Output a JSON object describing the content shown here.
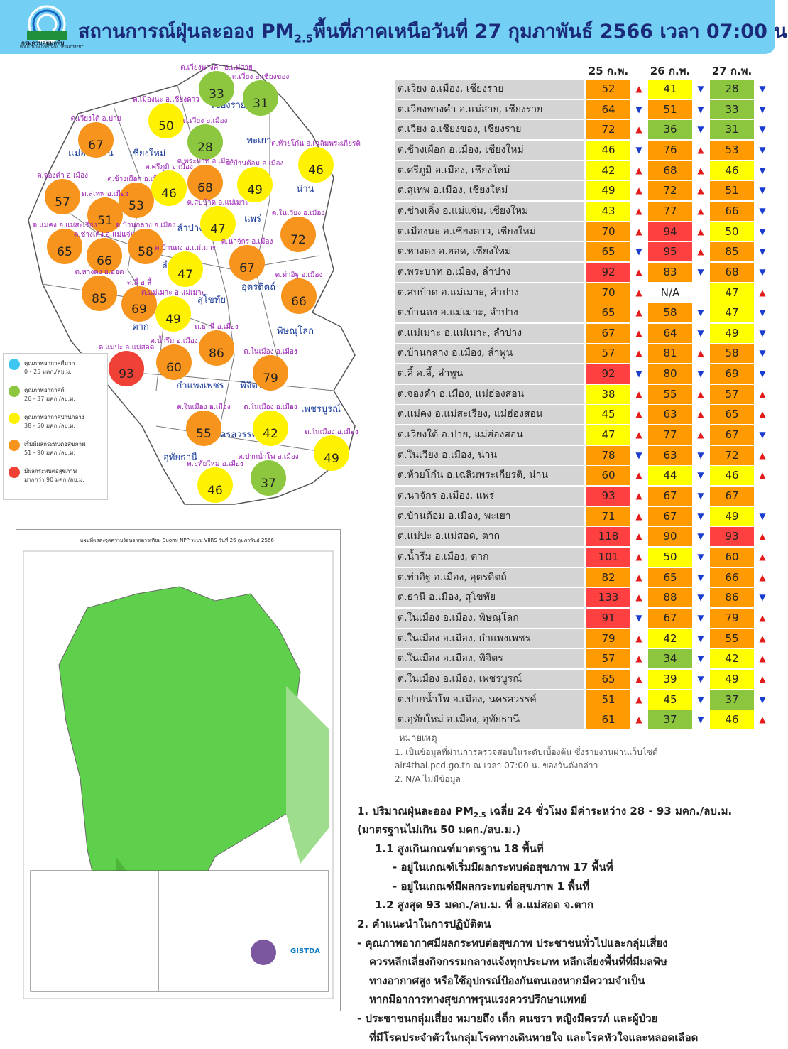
{
  "header": {
    "title_parts": [
      "สถานการณ์ฝุ่นละออง PM",
      "2.5",
      "พื้นที่ภาคเหนือวันที่ 27 กุมภาพันธ์ 2566 เวลา 07:00 น."
    ],
    "logo_name": "กรมควบคุมมลพิษ",
    "logo_en": "POLLUTION CONTROL DEPARTMENT"
  },
  "map": {
    "provinces": [
      "เชียงราย",
      "แม่ฮ่องสอน",
      "เชียงใหม่",
      "พะเยา",
      "น่าน",
      "ลำปาง",
      "แพร่",
      "ลำพูน",
      "สุโขทัย",
      "อุตรดิตถ์",
      "ตาก",
      "พิษณุโลก",
      "กำแพงเพชร",
      "พิจิตร",
      "เพชรบูรณ์",
      "นครสวรรค์",
      "อุทัยธานี"
    ],
    "stations": [
      {
        "label": "ต.เวียงพางคำ อ.แม่สาย",
        "value": 33
      },
      {
        "label": "ต.เวียง อ.เชียงของ",
        "value": 31
      },
      {
        "label": "ต.เมืองนะ อ.เชียงดาว",
        "value": 50
      },
      {
        "label": "ต.เวียง อ.เมือง",
        "value": 28
      },
      {
        "label": "ต.เวียงใต้ อ.ปาย",
        "value": 67
      },
      {
        "label": "ต.ห้วยโก๋น อ.เฉลิมพระเกียรติ",
        "value": 46
      },
      {
        "label": "ต.จองคำ อ.เมือง",
        "value": 57
      },
      {
        "label": "ต.ช้างเผือก อ.เมือง",
        "value": 53
      },
      {
        "label": "ต.ศรีภูมิ อ.เมือง",
        "value": 46
      },
      {
        "label": "ต.พระบาท อ.เมือง",
        "value": 68
      },
      {
        "label": "ต.บ้านต้อม อ.เมือง",
        "value": 49
      },
      {
        "label": "ต.สุเทพ อ.เมือง",
        "value": 51
      },
      {
        "label": "ต.สบป้าด อ.แม่เมาะ",
        "value": 47
      },
      {
        "label": "ต.ในเวียง อ.เมือง",
        "value": 72
      },
      {
        "label": "ต.แม่คง อ.แม่สะเรียง",
        "value": 65
      },
      {
        "label": "ต.ช่างเคิ่ง อ.แม่แจ่ม",
        "value": 66
      },
      {
        "label": "ต.บ้านกลาง อ.เมือง",
        "value": 58
      },
      {
        "label": "ต.บ้านดง อ.แม่เมาะ",
        "value": 47
      },
      {
        "label": "ต.นาจักร อ.เมือง",
        "value": 67
      },
      {
        "label": "ต.หางดง อ.ฮอด",
        "value": 85
      },
      {
        "label": "ต.ลี้ อ.ลี้",
        "value": 69
      },
      {
        "label": "ต.แม่เมาะ อ.แม่เมาะ",
        "value": 49
      },
      {
        "label": "ต.ท่าอิฐ อ.เมือง",
        "value": 66
      },
      {
        "label": "ต.ธานี อ.เมือง",
        "value": 86
      },
      {
        "label": "ต.แม่ปะ อ.แม่สอด",
        "value": 93
      },
      {
        "label": "ต.น้ำรึม อ.เมือง",
        "value": 60
      },
      {
        "label": "ต.ในเมือง อ.เมือง",
        "value": 79
      },
      {
        "label": "ต.ในเมือง อ.เมือง",
        "value": 55
      },
      {
        "label": "ต.ในเมือง อ.เมือง",
        "value": 42
      },
      {
        "label": "ต.ในเมือง อ.เมือง",
        "value": 49
      },
      {
        "label": "ต.ปากน้ำโพ อ.เมือง",
        "value": 37
      },
      {
        "label": "ต.อุทัยใหม่ อ.เมือง",
        "value": 46
      }
    ]
  },
  "legend": [
    {
      "name": "คุณภาพอากาศดีมาก",
      "range": "0 - 25 มคก./ลบ.ม.",
      "color": "#3ec6f0"
    },
    {
      "name": "คุณภาพอากาศดี",
      "range": "26 - 37 มคก./ลบ.ม.",
      "color": "#8dc63f"
    },
    {
      "name": "คุณภาพอากาศปานกลาง",
      "range": "38 - 50 มคก./ลบ.ม.",
      "color": "#fff200"
    },
    {
      "name": "เริ่มมีผลกระทบต่อสุขภาพ",
      "range": "51 - 90 มคก./ลบ.ม.",
      "color": "#f7941d"
    },
    {
      "name": "มีผลกระทบต่อสุขภาพ",
      "range": "มากกว่า 90 มคก./ลบ.ม.",
      "color": "#ef4136"
    }
  ],
  "satellite": {
    "title": "แผนที่แสดงจุดความร้อนจากดาวเทียม Suomi NPP ระบบ VIIRS วันที่ 26 กุมภาพันธ์ 2566",
    "credit": "GISTDA"
  },
  "table": {
    "columns": [
      "25 ก.พ.",
      "26 ก.พ.",
      "27 ก.พ."
    ],
    "rows": [
      {
        "name": "ต.เวียง อ.เมือง, เชียงราย",
        "values": [
          52,
          41,
          28
        ],
        "arrows": [
          "▲",
          "▼",
          "▼"
        ]
      },
      {
        "name": "ต.เวียงพางคำ อ.แม่สาย, เชียงราย",
        "values": [
          64,
          51,
          33
        ],
        "arrows": [
          "▼",
          "▼",
          "▼"
        ]
      },
      {
        "name": "ต.เวียง อ.เชียงของ, เชียงราย",
        "values": [
          72,
          36,
          31
        ],
        "arrows": [
          "▲",
          "▼",
          "▼"
        ]
      },
      {
        "name": "ต.ช้างเผือก อ.เมือง, เชียงใหม่",
        "values": [
          46,
          76,
          53
        ],
        "arrows": [
          "▼",
          "▲",
          "▼"
        ]
      },
      {
        "name": "ต.ศรีภูมิ อ.เมือง, เชียงใหม่",
        "values": [
          42,
          68,
          46
        ],
        "arrows": [
          "▲",
          "▲",
          "▼"
        ]
      },
      {
        "name": "ต.สุเทพ อ.เมือง, เชียงใหม่",
        "values": [
          49,
          72,
          51
        ],
        "arrows": [
          "▲",
          "▲",
          "▼"
        ]
      },
      {
        "name": "ต.ช่างเคิ่ง อ.แม่แจ่ม, เชียงใหม่",
        "values": [
          43,
          77,
          66
        ],
        "arrows": [
          "▲",
          "▲",
          "▼"
        ]
      },
      {
        "name": "ต.เมืองนะ อ.เชียงดาว, เชียงใหม่",
        "values": [
          70,
          94,
          50
        ],
        "arrows": [
          "▲",
          "▲",
          "▼"
        ]
      },
      {
        "name": "ต.หางดง อ.ฮอด, เชียงใหม่",
        "values": [
          65,
          95,
          85
        ],
        "arrows": [
          "▼",
          "▲",
          "▼"
        ]
      },
      {
        "name": "ต.พระบาท อ.เมือง, ลำปาง",
        "values": [
          92,
          83,
          68
        ],
        "arrows": [
          "▲",
          "▼",
          "▼"
        ]
      },
      {
        "name": "ต.สบป้าด อ.แม่เมาะ, ลำปาง",
        "values": [
          70,
          "N/A",
          47
        ],
        "arrows": [
          "▲",
          null,
          "▲"
        ]
      },
      {
        "name": "ต.บ้านดง อ.แม่เมาะ, ลำปาง",
        "values": [
          65,
          58,
          47
        ],
        "arrows": [
          "▲",
          "▼",
          "▼"
        ]
      },
      {
        "name": "ต.แม่เมาะ อ.แม่เมาะ, ลำปาง",
        "values": [
          67,
          64,
          49
        ],
        "arrows": [
          "▲",
          "▼",
          "▼"
        ]
      },
      {
        "name": "ต.บ้านกลาง อ.เมือง, ลำพูน",
        "values": [
          57,
          81,
          58
        ],
        "arrows": [
          "▲",
          "▲",
          "▼"
        ]
      },
      {
        "name": "ต.ลี้ อ.ลี้, ลำพูน",
        "values": [
          92,
          80,
          69
        ],
        "arrows": [
          "▼",
          "▼",
          "▼"
        ]
      },
      {
        "name": "ต.จองคำ อ.เมือง, แม่ฮ่องสอน",
        "values": [
          38,
          55,
          57
        ],
        "arrows": [
          "▲",
          "▲",
          "▲"
        ]
      },
      {
        "name": "ต.แม่คง อ.แม่สะเรียง, แม่ฮ่องสอน",
        "values": [
          45,
          63,
          65
        ],
        "arrows": [
          "▲",
          "▲",
          "▲"
        ]
      },
      {
        "name": "ต.เวียงใต้ อ.ปาย, แม่ฮ่องสอน",
        "values": [
          47,
          77,
          67
        ],
        "arrows": [
          "▲",
          "▲",
          "▼"
        ]
      },
      {
        "name": "ต.ในเวียง อ.เมือง, น่าน",
        "values": [
          78,
          63,
          72
        ],
        "arrows": [
          "▼",
          "▼",
          "▲"
        ]
      },
      {
        "name": "ต.ห้วยโก๋น อ.เฉลิมพระเกียรติ, น่าน",
        "values": [
          60,
          44,
          46
        ],
        "arrows": [
          "▲",
          "▼",
          "▲"
        ]
      },
      {
        "name": "ต.นาจักร อ.เมือง, แพร่",
        "values": [
          93,
          67,
          67
        ],
        "arrows": [
          "▲",
          "▼",
          null
        ]
      },
      {
        "name": "ต.บ้านต้อม อ.เมือง, พะเยา",
        "values": [
          71,
          67,
          49
        ],
        "arrows": [
          "▲",
          "▼",
          "▼"
        ]
      },
      {
        "name": "ต.แม่ปะ อ.แม่สอด, ตาก",
        "values": [
          118,
          90,
          93
        ],
        "arrows": [
          "▲",
          "▼",
          "▲"
        ]
      },
      {
        "name": "ต.น้ำรึม อ.เมือง, ตาก",
        "values": [
          101,
          50,
          60
        ],
        "arrows": [
          "▲",
          "▼",
          "▲"
        ]
      },
      {
        "name": "ต.ท่าอิฐ อ.เมือง, อุตรดิตถ์",
        "values": [
          82,
          65,
          66
        ],
        "arrows": [
          "▲",
          "▼",
          "▲"
        ]
      },
      {
        "name": "ต.ธานี อ.เมือง, สุโขทัย",
        "values": [
          133,
          88,
          86
        ],
        "arrows": [
          "▲",
          "▼",
          "▼"
        ]
      },
      {
        "name": "ต.ในเมือง อ.เมือง, พิษณุโลก",
        "values": [
          91,
          67,
          79
        ],
        "arrows": [
          "▼",
          "▼",
          "▲"
        ]
      },
      {
        "name": "ต.ในเมือง อ.เมือง, กำแพงเพชร",
        "values": [
          79,
          42,
          55
        ],
        "arrows": [
          "▲",
          "▼",
          "▲"
        ]
      },
      {
        "name": "ต.ในเมือง อ.เมือง, พิจิตร",
        "values": [
          57,
          34,
          42
        ],
        "arrows": [
          "▲",
          "▼",
          "▲"
        ]
      },
      {
        "name": "ต.ในเมือง อ.เมือง, เพชรบูรณ์",
        "values": [
          65,
          39,
          49
        ],
        "arrows": [
          "▲",
          "▼",
          "▲"
        ]
      },
      {
        "name": "ต.ปากน้ำโพ อ.เมือง, นครสวรรค์",
        "values": [
          51,
          45,
          37
        ],
        "arrows": [
          "▲",
          "▼",
          "▼"
        ]
      },
      {
        "name": "ต.อุทัยใหม่ อ.เมือง, อุทัยธานี",
        "values": [
          61,
          37,
          46
        ],
        "arrows": [
          "▲",
          "▼",
          "▲"
        ]
      }
    ]
  },
  "notes": {
    "title": "หมายเหตุ",
    "lines": [
      "1. เป็นข้อมูลที่ผ่านการตรวจสอบในระดับเบื้องต้น ซึ่งรายงานผ่านเว็บไซต์",
      "air4thai.pcd.go.th ณ เวลา 07:00 น. ของวันดังกล่าว",
      "2. N/A ไม่มีข้อมูล"
    ]
  },
  "summary": {
    "first_parts": [
      "1. ปริมาณฝุ่นละออง PM",
      "2.5",
      " เฉลี่ย 24 ชั่วโมง มีค่าระหว่าง 28 - 93 มคก./ลบ.ม."
    ],
    "lines": [
      "(มาตรฐานไม่เกิน 50 มคก./ลบ.ม.)",
      "1.1 สูงเกินเกณฑ์มาตรฐาน 18 พื้นที่",
      "- อยู่ในเกณฑ์เริ่มมีผลกระทบต่อสุขภาพ 17 พื้นที่",
      "- อยู่ในเกณฑ์มีผลกระทบต่อสุขภาพ 1 พื้นที่",
      "1.2 สูงสุด 93 มคก./ลบ.ม. ที่ อ.แม่สอด จ.ตาก",
      "2. คำแนะนำในการปฏิบัติตน",
      "- คุณภาพอากาศมีผลกระทบต่อสุขภาพ ประชาชนทั่วไปและกลุ่มเสี่ยง",
      "ควรหลีกเลี่ยงกิจกรรมกลางแจ้งทุกประเภท หลีกเลี่ยงพื้นที่ที่มีมลพิษ",
      "ทางอากาศสูง หรือใช้อุปกรณ์ป้องกันตนเองหากมีความจำเป็น",
      "หากมีอาการทางสุขภาพรุนแรงควรปรึกษาแพทย์",
      "- ประชาชนกลุ่มเสี่ยง หมายถึง เด็ก คนชรา หญิงมีครรภ์ และผู้ป่วย",
      "ที่มีโรคประจำตัวในกลุ่มโรคทางเดินหายใจ และโรคหัวใจและหลอดเลือด"
    ]
  }
}
